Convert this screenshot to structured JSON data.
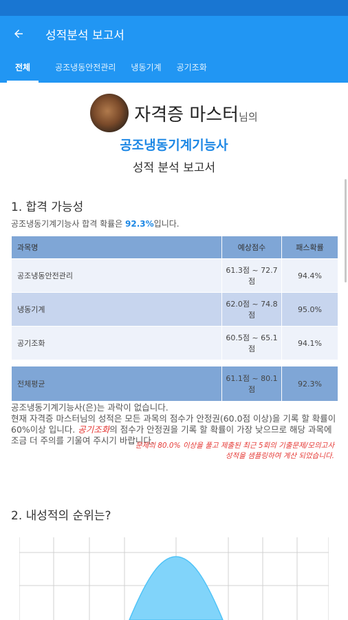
{
  "appbar": {
    "title": "성적분석 보고서"
  },
  "tabs": [
    {
      "label": "전체",
      "active": true
    },
    {
      "label": "공조냉동안전관리"
    },
    {
      "label": "냉동기계"
    },
    {
      "label": "공기조화"
    }
  ],
  "header": {
    "user_name": "자격증 마스터",
    "suffix": "님의",
    "certificate": "공조냉동기계기능사",
    "report_title": "성적 분석 보고서"
  },
  "section1": {
    "title": "1. 합격 가능성",
    "summary_prefix": "공조냉동기계기능사 합격 확률은 ",
    "summary_pct": "92.3%",
    "summary_suffix": "입니다.",
    "table": {
      "headers": [
        "과목명",
        "예상점수",
        "패스확률"
      ],
      "rows": [
        {
          "subject": "공조냉동안전관리",
          "score": "61.3점 ~ 72.7점",
          "pass": "94.4%"
        },
        {
          "subject": "냉동기계",
          "score": "62.0점 ~ 74.8점",
          "pass": "95.0%"
        },
        {
          "subject": "공기조화",
          "score": "60.5점 ~ 65.1점",
          "pass": "94.1%"
        }
      ],
      "average": {
        "subject": "전체평균",
        "score": "61.1점 ~ 80.1점",
        "pass": "92.3%"
      }
    },
    "desc_line1": "공조냉동기계기능사(은)는 과락이 없습니다.",
    "desc_line2": "현재 자격증 마스터님의 성적은 모든 과목의 점수가 안정권(60.0점 이상)을 기록 할 확률이 60%이상 입니다. ",
    "desc_highlight": "공기조화",
    "desc_line3": "의 점수가 안정권을 기록 할 확률이 가장 낮으므로 해당 과목에 조금 더 주의를 기울여 주시기 바랍니다.",
    "note": "문제의 80.0% 이상을 풀고 제출된 최근 5회의 기출문제/모의고사 성적을 샘플링하여 계산 되었습니다."
  },
  "section2": {
    "title": "2. 내성적의 순위는?"
  },
  "colors": {
    "primary": "#2196f3",
    "statusbar": "#1976d2",
    "accent": "#1e88e5",
    "warning": "#e53935"
  }
}
